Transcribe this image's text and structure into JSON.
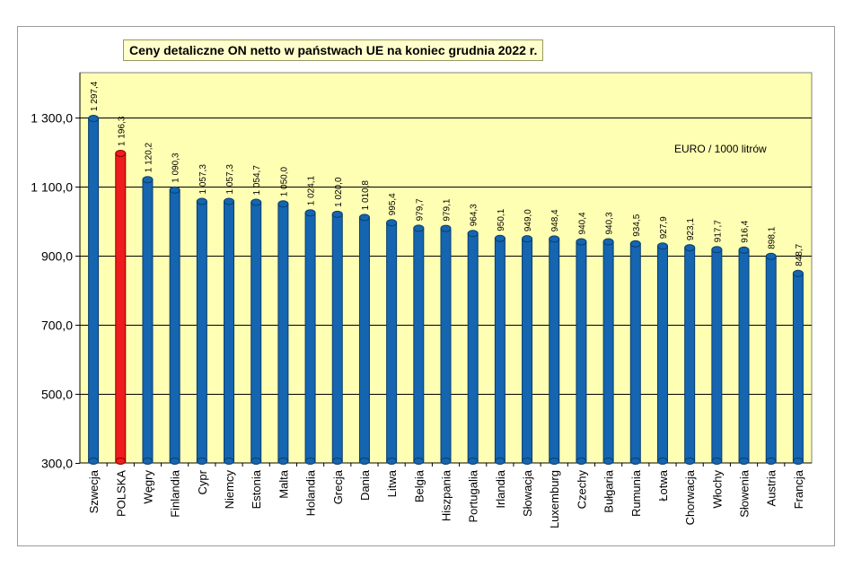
{
  "chart_data": {
    "type": "bar",
    "title": "Ceny detaliczne ON netto w państwach UE na koniec grudnia 2022 r.",
    "annotation": "EURO / 1000 litrów",
    "xlabel": "",
    "ylabel": "",
    "ylim": [
      300,
      1430
    ],
    "yticks": [
      300,
      500,
      700,
      900,
      1100,
      1300
    ],
    "ytick_labels": [
      "300,0",
      "500,0",
      "700,0",
      "900,0",
      "1 100,0",
      "1 300,0"
    ],
    "grid": true,
    "categories": [
      "Szwecja",
      "POLSKA",
      "Węgry",
      "Finlandia",
      "Cypr",
      "Niemcy",
      "Estonia",
      "Malta",
      "Holandia",
      "Grecja",
      "Dania",
      "Litwa",
      "Belgia",
      "Hiszpania",
      "Portugalia",
      "Irlandia",
      "Słowacja",
      "Luxemburg",
      "Czechy",
      "Bułgaria",
      "Rumunia",
      "Łotwa",
      "Chorwacja",
      "Włochy",
      "Słowenia",
      "Austria",
      "Francja"
    ],
    "values": [
      1297.4,
      1196.3,
      1120.2,
      1090.3,
      1057.3,
      1057.3,
      1054.7,
      1050.0,
      1024.1,
      1020.0,
      1010.8,
      995.4,
      979.7,
      979.1,
      964.3,
      950.1,
      949.0,
      948.4,
      940.4,
      940.3,
      934.5,
      927.9,
      923.1,
      917.7,
      916.4,
      898.1,
      848.7
    ],
    "value_labels": [
      "1 297,4",
      "1 196,3",
      "1 120,2",
      "1 090,3",
      "1 057,3",
      "1 057,3",
      "1 054,7",
      "1 050,0",
      "1 024,1",
      "1 020,0",
      "1 010,8",
      "995,4",
      "979,7",
      "979,1",
      "964,3",
      "950,1",
      "949,0",
      "948,4",
      "940,4",
      "940,3",
      "934,5",
      "927,9",
      "923,1",
      "917,7",
      "916,4",
      "898,1",
      "848,7"
    ],
    "highlight_category": "POLSKA",
    "colors": {
      "bar": "#1565b0",
      "bar_edge": "#0a3d70",
      "highlight": "#ee1c1c",
      "highlight_edge": "#8a0000",
      "plot_background": "#ffffb3",
      "gridline": "#000000"
    }
  }
}
